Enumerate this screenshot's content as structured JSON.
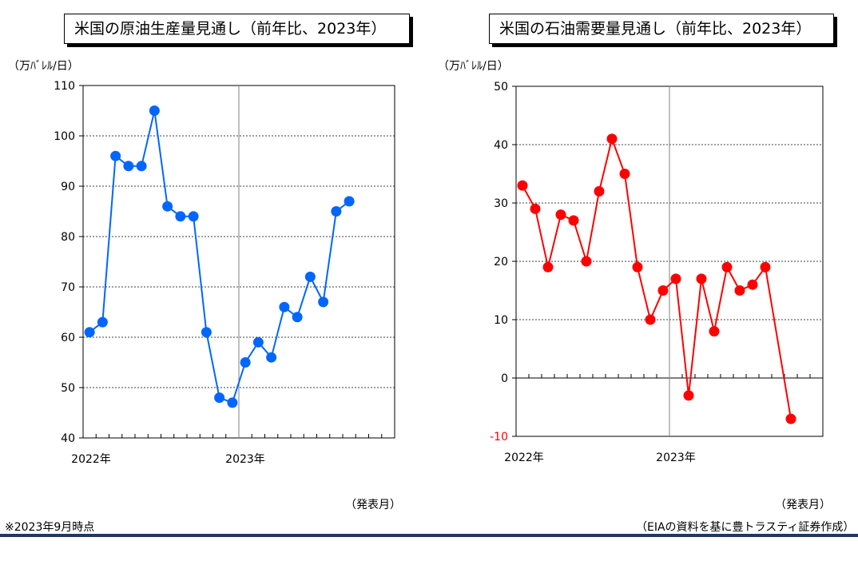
{
  "charts": [
    {
      "title": "米国の原油生産量見通し（前年比、2023年）",
      "unit_label": "（万ﾊﾞﾚﾙ/日）",
      "release_label": "（発表月）"
    },
    {
      "title": "米国の石油需要量見通し（前年比、2023年）",
      "unit_label": "（万ﾊﾞﾚﾙ/日）",
      "release_label": "（発表月）"
    }
  ],
  "footer": {
    "note": "※2023年9月時点",
    "source": "（EIAの資料を基に豊トラスティ証券作成）"
  },
  "colors": {
    "left_series": "#0066ff",
    "right_series": "#ff0000",
    "rule": "#1f3864"
  },
  "chart_data": [
    {
      "type": "line",
      "title": "米国の原油生産量見通し（前年比、2023年）",
      "ylabel": "（万ﾊﾞﾚﾙ/日）",
      "xlabel": "（発表月）",
      "ylim": [
        40,
        110
      ],
      "yticks": [
        40,
        50,
        60,
        70,
        80,
        90,
        100,
        110
      ],
      "x_tick_labels": [
        "2022年",
        "2023年"
      ],
      "x": [
        "2022-01",
        "2022-02",
        "2022-03",
        "2022-04",
        "2022-05",
        "2022-06",
        "2022-07",
        "2022-08",
        "2022-09",
        "2022-10",
        "2022-11",
        "2022-12",
        "2023-01",
        "2023-02",
        "2023-03",
        "2023-04",
        "2023-05",
        "2023-06",
        "2023-07",
        "2023-08",
        "2023-09"
      ],
      "values": [
        61,
        63,
        96,
        94,
        94,
        105,
        86,
        84,
        84,
        61,
        48,
        47,
        55,
        59,
        56,
        66,
        64,
        72,
        67,
        85,
        87
      ],
      "grid": "horizontal dashed",
      "legend": "none"
    },
    {
      "type": "line",
      "title": "米国の石油需要量見通し（前年比、2023年）",
      "ylabel": "（万ﾊﾞﾚﾙ/日）",
      "xlabel": "（発表月）",
      "ylim": [
        -10,
        50
      ],
      "yticks": [
        -10,
        0,
        10,
        20,
        30,
        40,
        50
      ],
      "x_tick_labels": [
        "2022年",
        "2023年"
      ],
      "x": [
        "2022-01",
        "2022-02",
        "2022-03",
        "2022-04",
        "2022-05",
        "2022-06",
        "2022-07",
        "2022-08",
        "2022-09",
        "2022-10",
        "2022-11",
        "2022-12",
        "2023-01",
        "2023-02",
        "2023-03",
        "2023-04",
        "2023-05",
        "2023-06",
        "2023-07",
        "2023-08",
        "2023-09",
        "2023-10"
      ],
      "values": [
        33,
        29,
        19,
        28,
        27,
        20,
        32,
        41,
        35,
        19,
        10,
        15,
        17,
        -3,
        17,
        8,
        19,
        15,
        16,
        19,
        null,
        -7
      ],
      "grid": "horizontal dashed",
      "legend": "none"
    }
  ]
}
